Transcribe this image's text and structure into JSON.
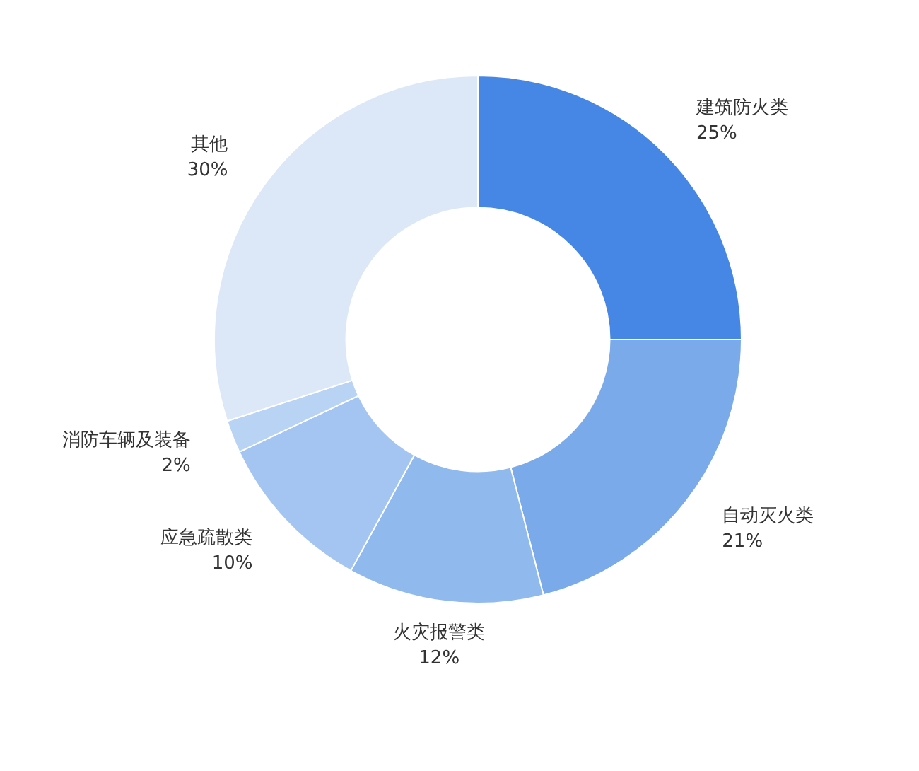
{
  "chart_data": {
    "type": "donut",
    "categories": [
      "建筑防火类",
      "自动灭火类",
      "火灾报警类",
      "应急疏散类",
      "消防车辆及装备",
      "其他"
    ],
    "values": [
      25,
      21,
      12,
      10,
      2,
      30
    ],
    "value_labels": [
      "25%",
      "21%",
      "12%",
      "10%",
      "2%",
      "30%"
    ],
    "colors": [
      "#4686e4",
      "#7aaaea",
      "#90b9ee",
      "#a4c5f1",
      "#b9d3f5",
      "#dce8f8"
    ],
    "legend": false
  }
}
